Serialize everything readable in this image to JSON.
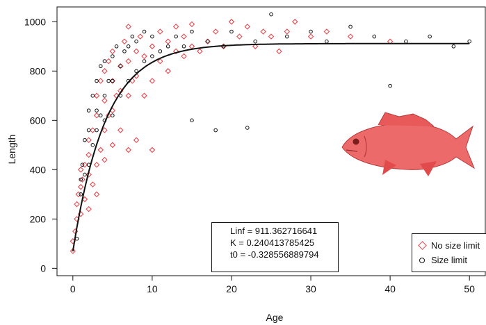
{
  "chart_data": {
    "type": "scatter",
    "xlabel": "Age",
    "ylabel": "Length",
    "xlim": [
      -2,
      52
    ],
    "ylim": [
      -30,
      1060
    ],
    "x_ticks": [
      0,
      10,
      20,
      30,
      40,
      50
    ],
    "y_ticks": [
      0,
      200,
      400,
      600,
      800,
      1000
    ],
    "grid": false,
    "legend_position": "bottom-right",
    "series": [
      {
        "name": "No size limit",
        "marker": "diamond",
        "color": "#e5484d",
        "points": [
          [
            0,
            70
          ],
          [
            0,
            110
          ],
          [
            0.3,
            150
          ],
          [
            0.5,
            200
          ],
          [
            0.5,
            260
          ],
          [
            0.7,
            300
          ],
          [
            1,
            220
          ],
          [
            1,
            330
          ],
          [
            1,
            400
          ],
          [
            1.2,
            360
          ],
          [
            1.5,
            280
          ],
          [
            1.5,
            420
          ],
          [
            2,
            240
          ],
          [
            2,
            380
          ],
          [
            2,
            460
          ],
          [
            2,
            520
          ],
          [
            2.5,
            340
          ],
          [
            2.5,
            560
          ],
          [
            3,
            300
          ],
          [
            3,
            420
          ],
          [
            3,
            620
          ],
          [
            3,
            700
          ],
          [
            3.5,
            480
          ],
          [
            3.5,
            760
          ],
          [
            4,
            440
          ],
          [
            4,
            560
          ],
          [
            4,
            680
          ],
          [
            4,
            800
          ],
          [
            4.5,
            620
          ],
          [
            4.5,
            840
          ],
          [
            5,
            500
          ],
          [
            5,
            640
          ],
          [
            5,
            760
          ],
          [
            5,
            880
          ],
          [
            5.5,
            700
          ],
          [
            6,
            560
          ],
          [
            6,
            720
          ],
          [
            6,
            820
          ],
          [
            6.5,
            920
          ],
          [
            7,
            480
          ],
          [
            7,
            700
          ],
          [
            7,
            840
          ],
          [
            7,
            980
          ],
          [
            7.5,
            760
          ],
          [
            8,
            520
          ],
          [
            8,
            780
          ],
          [
            8,
            880
          ],
          [
            8.5,
            940
          ],
          [
            9,
            700
          ],
          [
            9,
            860
          ],
          [
            10,
            480
          ],
          [
            10,
            760
          ],
          [
            10,
            900
          ],
          [
            11,
            840
          ],
          [
            11,
            960
          ],
          [
            12,
            800
          ],
          [
            12,
            920
          ],
          [
            13,
            880
          ],
          [
            13,
            980
          ],
          [
            14,
            860
          ],
          [
            14,
            940
          ],
          [
            15,
            900
          ],
          [
            15,
            990
          ],
          [
            16,
            880
          ],
          [
            17,
            920
          ],
          [
            18,
            960
          ],
          [
            19,
            900
          ],
          [
            20,
            1000
          ],
          [
            21,
            940
          ],
          [
            22,
            980
          ],
          [
            23,
            900
          ],
          [
            24,
            960
          ],
          [
            25,
            940
          ],
          [
            26,
            880
          ],
          [
            27,
            960
          ],
          [
            28,
            1000
          ],
          [
            30,
            940
          ],
          [
            32,
            960
          ],
          [
            35,
            940
          ],
          [
            40,
            920
          ]
        ]
      },
      {
        "name": "Size limit",
        "marker": "circle",
        "color": "#111111",
        "points": [
          [
            0.5,
            120
          ],
          [
            1,
            300
          ],
          [
            1,
            360
          ],
          [
            1.2,
            420
          ],
          [
            1.5,
            380
          ],
          [
            1.5,
            520
          ],
          [
            2,
            420
          ],
          [
            2,
            560
          ],
          [
            2,
            640
          ],
          [
            2.5,
            500
          ],
          [
            2.5,
            700
          ],
          [
            3,
            560
          ],
          [
            3,
            640
          ],
          [
            3,
            760
          ],
          [
            3.5,
            620
          ],
          [
            3.5,
            820
          ],
          [
            4,
            600
          ],
          [
            4,
            700
          ],
          [
            4,
            840
          ],
          [
            4.5,
            760
          ],
          [
            5,
            620
          ],
          [
            5,
            760
          ],
          [
            5,
            860
          ],
          [
            5.5,
            900
          ],
          [
            6,
            700
          ],
          [
            6,
            820
          ],
          [
            6.5,
            880
          ],
          [
            7,
            760
          ],
          [
            7,
            900
          ],
          [
            7.5,
            940
          ],
          [
            8,
            800
          ],
          [
            8,
            920
          ],
          [
            9,
            840
          ],
          [
            9,
            960
          ],
          [
            10,
            860
          ],
          [
            10,
            940
          ],
          [
            11,
            880
          ],
          [
            12,
            900
          ],
          [
            13,
            940
          ],
          [
            14,
            900
          ],
          [
            15,
            960
          ],
          [
            15,
            600
          ],
          [
            17,
            920
          ],
          [
            18,
            560
          ],
          [
            19,
            900
          ],
          [
            20,
            960
          ],
          [
            22,
            570
          ],
          [
            23,
            920
          ],
          [
            25,
            1030
          ],
          [
            27,
            940
          ],
          [
            30,
            960
          ],
          [
            32,
            920
          ],
          [
            35,
            980
          ],
          [
            38,
            940
          ],
          [
            40,
            740
          ],
          [
            42,
            920
          ],
          [
            45,
            940
          ],
          [
            48,
            900
          ],
          [
            50,
            920
          ]
        ]
      }
    ],
    "fit_curve": {
      "name": "von Bertalanffy fit",
      "Linf": 911.362716641,
      "K": 0.240413785425,
      "t0": -0.328556889794
    },
    "annotation_lines": [
      "Linf = 911.362716641",
      "K = 0.240413785425",
      "t0 = -0.328556889794"
    ],
    "legend": [
      "No size limit",
      "Size limit"
    ],
    "inset_image": "red-snapper-fish"
  }
}
